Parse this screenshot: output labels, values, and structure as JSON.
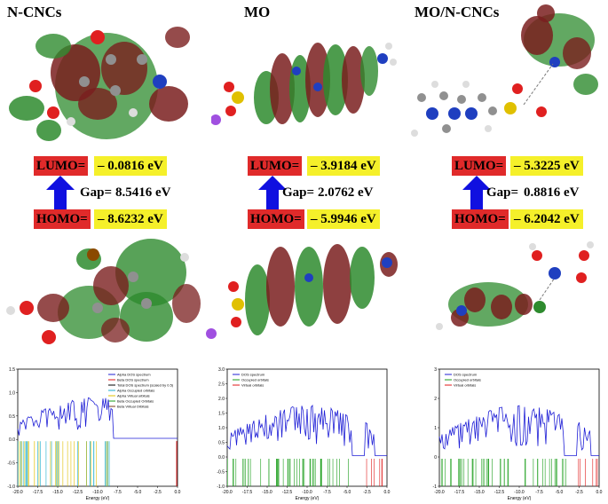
{
  "panels": [
    {
      "title": "N-CNCs",
      "lumo_label": "LUMO=",
      "lumo_value": "– 0.0816 eV",
      "gap_label": "Gap=",
      "gap_value": "8.5416 eV",
      "homo_label": "HOMO=",
      "homo_value": "– 8.6232 eV",
      "dos": {
        "legend": [
          "Alpha DOS spectrum",
          "Beta DOS spectrum",
          "Total DOS spectrum (scaled by 0.5)",
          "Alpha Occupied orbitals",
          "Alpha Virtual orbitals",
          "Beta Occupied Orbitals",
          "Beta Virtual Orbitals"
        ],
        "xlabel": "Energy (eV)",
        "xticks": [
          "-20.0",
          "-17.5",
          "-15.0",
          "-12.5",
          "-10.0",
          "-7.5",
          "-5.0",
          "-2.5",
          "0.0"
        ],
        "yticks": [
          "-1.0",
          "-0.5",
          "0.0",
          "0.5",
          "1.0",
          "1.5"
        ]
      }
    },
    {
      "title": "MO",
      "lumo_label": "LUMO=",
      "lumo_value": "– 3.9184 eV",
      "gap_label": "Gap=",
      "gap_value": "2.0762 eV",
      "homo_label": "HOMO=",
      "homo_value": "– 5.9946 eV",
      "dos": {
        "legend": [
          "DOS spectrum",
          "Occupied orbitals",
          "Virtual orbitals"
        ],
        "xlabel": "Energy (eV)",
        "xticks": [
          "-20.0",
          "-17.5",
          "-15.0",
          "-12.5",
          "-10.0",
          "-7.5",
          "-5.0",
          "-2.5",
          "0.0"
        ],
        "yticks": [
          "-1.0",
          "-0.5",
          "0.0",
          "0.5",
          "1.0",
          "1.5",
          "2.0",
          "2.5",
          "3.0"
        ]
      }
    },
    {
      "title": "MO/N-CNCs",
      "lumo_label": "LUMO=",
      "lumo_value": "– 5.3225 eV",
      "gap_label": "Gap=",
      "gap_value": "0.8816 eV",
      "homo_label": "HOMO=",
      "homo_value": "– 6.2042 eV",
      "dos": {
        "legend": [
          "DOS spectrum",
          "Occupied orbitals",
          "Virtual orbitals"
        ],
        "xlabel": "Energy (eV)",
        "xticks": [
          "-20.0",
          "-17.5",
          "-15.0",
          "-12.5",
          "-10.0",
          "-7.5",
          "-5.0",
          "-2.5",
          "0.0"
        ],
        "yticks": [
          "-1",
          "0",
          "1",
          "2",
          "3"
        ]
      }
    }
  ],
  "colors": {
    "label_bg": "#e02a2a",
    "value_bg": "#f5f02a",
    "arrow": "#1010e0",
    "orbital_green": "#2e8b2e",
    "orbital_maroon": "#7a1e1e",
    "dos_blue": "#1f1fd6",
    "occupied_green": "#1a9e1a",
    "virtual_red": "#e01a1a"
  }
}
